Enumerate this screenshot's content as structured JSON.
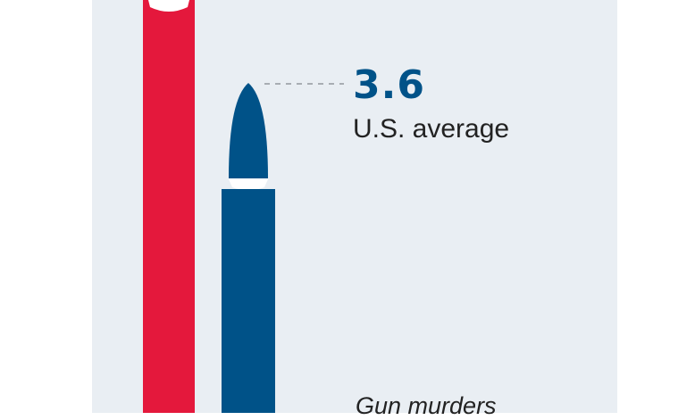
{
  "colors": {
    "panel": "#e9eef3",
    "red_bullet": "#e4183c",
    "blue_bullet": "#005288",
    "band": "#ffffff",
    "leader": "#a8adb3",
    "text": "#222222"
  },
  "chart_data": {
    "type": "bar",
    "style": "bullet-icons",
    "series": [
      {
        "color": "#e4183c",
        "values": [
          null
        ]
      },
      {
        "color": "#005288",
        "values": [
          3.6
        ]
      }
    ],
    "annotations": [
      {
        "value_text": "3.6",
        "label": "U.S. average"
      }
    ],
    "footer_label": "Gun murders"
  }
}
